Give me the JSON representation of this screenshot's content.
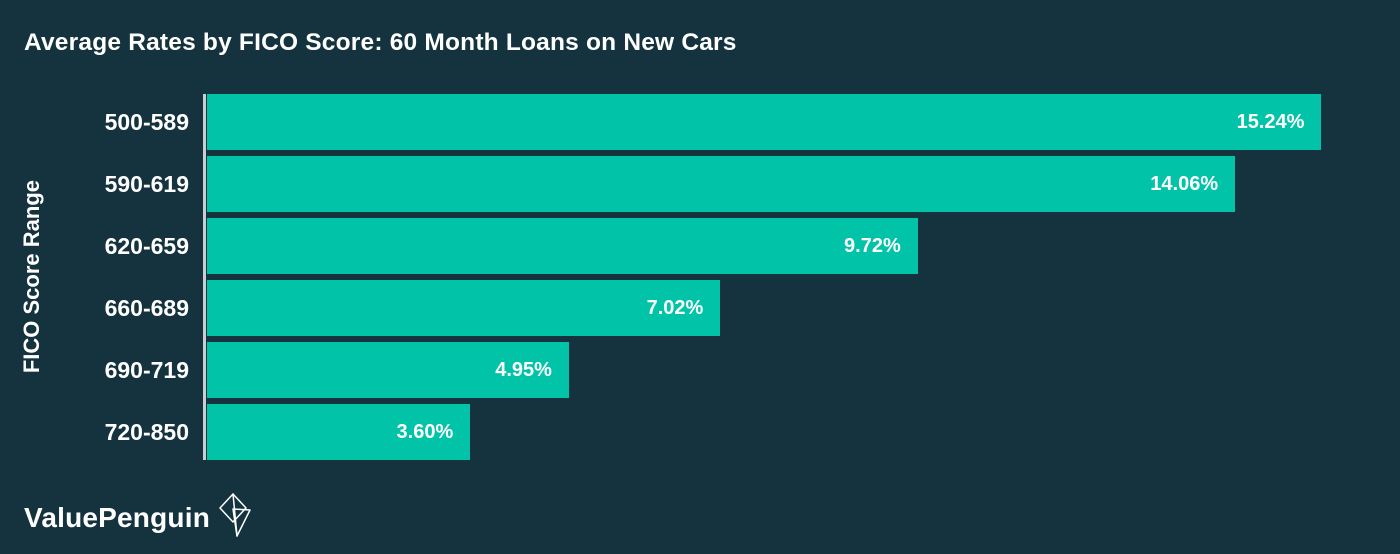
{
  "chart_data": {
    "type": "bar",
    "orientation": "horizontal",
    "title": "Average Rates by FICO Score: 60 Month Loans on New Cars",
    "xlabel": "",
    "ylabel": "FICO Score Range",
    "categories": [
      "500-589",
      "590-619",
      "620-659",
      "660-689",
      "690-719",
      "720-850"
    ],
    "values": [
      15.24,
      14.06,
      9.72,
      7.02,
      4.95,
      3.6
    ],
    "value_labels": [
      "15.24%",
      "14.06%",
      "9.72%",
      "7.02%",
      "4.95%",
      "3.60%"
    ],
    "xlim": [
      0,
      16
    ],
    "grid": false,
    "legend": false,
    "colors": {
      "background": "#14333E",
      "bar": "#00C3A7",
      "axis_line": "#C9CED3",
      "text": "#FFFFFF"
    }
  },
  "footer": {
    "brand": "ValuePenguin",
    "brand_icon": "origami-penguin-icon"
  }
}
